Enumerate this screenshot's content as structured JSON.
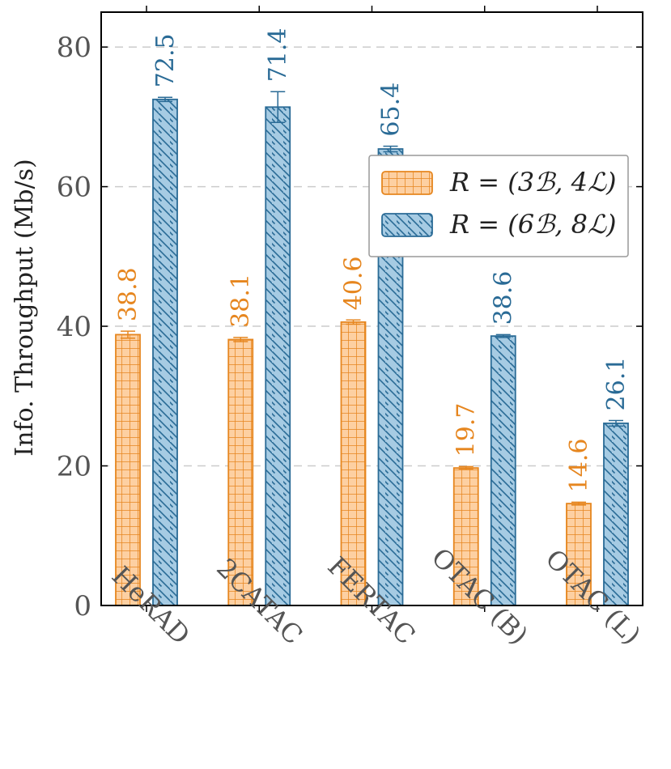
{
  "chart_data": {
    "type": "bar",
    "title": "",
    "xlabel": "",
    "ylabel": "Info. Throughput (Mb/s)",
    "ylim": [
      0,
      85
    ],
    "yticks": [
      0,
      20,
      40,
      60,
      80
    ],
    "grid": "horizontal dashed",
    "legend_position": "top-right",
    "categories": [
      "HeRAD",
      "2CATAC",
      "FERTAC",
      "OTAC (B)",
      "OTAC (L)"
    ],
    "series": [
      {
        "name": "R = (3_B, 4_L)",
        "legend_label": "R = (3ℬ, 4ℒ)",
        "values": [
          38.8,
          38.1,
          40.6,
          19.7,
          14.6
        ],
        "labels": [
          "38.8",
          "38.1",
          "40.6",
          "19.7",
          "14.6"
        ],
        "error": [
          0.5,
          0.3,
          0.3,
          0.2,
          0.2
        ],
        "color_fill": "#fdd0a2",
        "color_stroke": "#e6861f",
        "pattern": "grid"
      },
      {
        "name": "R = (6_B, 8_L)",
        "legend_label": "R = (6ℬ, 8ℒ)",
        "values": [
          72.5,
          71.4,
          65.4,
          38.6,
          26.1
        ],
        "labels": [
          "72.5",
          "71.4",
          "65.4",
          "38.6",
          "26.1"
        ],
        "error": [
          0.3,
          2.2,
          0.4,
          0.2,
          0.4
        ],
        "color_fill": "#a6cbe3",
        "color_stroke": "#2a6b96",
        "pattern": "diagonal"
      }
    ]
  }
}
